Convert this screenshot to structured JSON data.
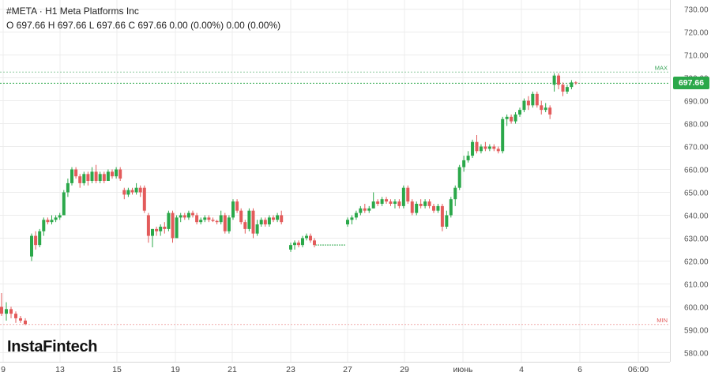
{
  "header": {
    "title": "#META · H1 Meta Platforms Inc",
    "ohlc": "O 697.66 H 697.66 L 697.66 C 697.66 0.00 (0.00%) 0.00 (0.00%)"
  },
  "logo": "InstaFintech",
  "chart_data": {
    "type": "candlestick",
    "symbol": "#META",
    "name": "Meta Platforms Inc",
    "timeframe": "H1",
    "ylim": [
      576,
      734
    ],
    "y_ticks": [
      "730.00",
      "720.00",
      "710.00",
      "700.00",
      "690.00",
      "680.00",
      "670.00",
      "660.00",
      "650.00",
      "640.00",
      "630.00",
      "620.00",
      "610.00",
      "600.00",
      "590.00",
      "580.00"
    ],
    "x_ticks": [
      "9",
      "13",
      "15",
      "19",
      "21",
      "23",
      "27",
      "29",
      "июнь",
      "4",
      "6",
      "06:00"
    ],
    "last_price": 697.66,
    "last_price_label": "697.66",
    "max_value": 702.5,
    "max_label": "MAX",
    "min_value": 592.3,
    "min_label": "MIN",
    "colors": {
      "up": "#2ba84a",
      "down": "#e35b5b",
      "wick": "#555555",
      "grid": "#ececec",
      "level": "#8fc9a0"
    },
    "candles": [
      {
        "o": 600,
        "h": 606,
        "l": 596,
        "c": 597
      },
      {
        "o": 597,
        "h": 602,
        "l": 594,
        "c": 599
      },
      {
        "o": 599,
        "h": 600,
        "l": 595,
        "c": 597
      },
      {
        "o": 597,
        "h": 598,
        "l": 593,
        "c": 595
      },
      {
        "o": 595,
        "h": 596,
        "l": 593,
        "c": 594
      },
      {
        "o": 594,
        "h": 595,
        "l": 592,
        "c": 592.5
      },
      {
        "o": 622,
        "h": 632,
        "l": 620,
        "c": 631
      },
      {
        "o": 631,
        "h": 633,
        "l": 625,
        "c": 627
      },
      {
        "o": 627,
        "h": 634,
        "l": 626,
        "c": 633
      },
      {
        "o": 633,
        "h": 639,
        "l": 631,
        "c": 638
      },
      {
        "o": 638,
        "h": 639,
        "l": 636,
        "c": 637
      },
      {
        "o": 637,
        "h": 640,
        "l": 636,
        "c": 638
      },
      {
        "o": 638,
        "h": 640,
        "l": 637,
        "c": 639
      },
      {
        "o": 639,
        "h": 641,
        "l": 638,
        "c": 640
      },
      {
        "o": 640,
        "h": 651,
        "l": 640,
        "c": 650
      },
      {
        "o": 650,
        "h": 656,
        "l": 648,
        "c": 654
      },
      {
        "o": 654,
        "h": 661,
        "l": 653,
        "c": 660
      },
      {
        "o": 660,
        "h": 661,
        "l": 656,
        "c": 657
      },
      {
        "o": 657,
        "h": 658,
        "l": 652,
        "c": 654
      },
      {
        "o": 654,
        "h": 659,
        "l": 653,
        "c": 658
      },
      {
        "o": 658,
        "h": 659,
        "l": 653,
        "c": 655
      },
      {
        "o": 655,
        "h": 661,
        "l": 654,
        "c": 659
      },
      {
        "o": 659,
        "h": 662,
        "l": 654,
        "c": 655
      },
      {
        "o": 655,
        "h": 659,
        "l": 654,
        "c": 658
      },
      {
        "o": 658,
        "h": 659,
        "l": 654,
        "c": 655
      },
      {
        "o": 655,
        "h": 660,
        "l": 655,
        "c": 659
      },
      {
        "o": 659,
        "h": 660,
        "l": 656,
        "c": 657
      },
      {
        "o": 657,
        "h": 661,
        "l": 656,
        "c": 660
      },
      {
        "o": 660,
        "h": 661,
        "l": 655,
        "c": 656
      },
      {
        "o": 651,
        "h": 652,
        "l": 647,
        "c": 649
      },
      {
        "o": 649,
        "h": 652,
        "l": 648,
        "c": 651
      },
      {
        "o": 651,
        "h": 652,
        "l": 649,
        "c": 650
      },
      {
        "o": 650,
        "h": 654,
        "l": 649,
        "c": 652
      },
      {
        "o": 652,
        "h": 653,
        "l": 648,
        "c": 650
      },
      {
        "o": 652,
        "h": 653,
        "l": 641,
        "c": 642
      },
      {
        "o": 640,
        "h": 641,
        "l": 628,
        "c": 631
      },
      {
        "o": 631,
        "h": 634,
        "l": 626,
        "c": 634
      },
      {
        "o": 634,
        "h": 635,
        "l": 631,
        "c": 633
      },
      {
        "o": 633,
        "h": 636,
        "l": 631,
        "c": 635
      },
      {
        "o": 635,
        "h": 637,
        "l": 632,
        "c": 634
      },
      {
        "o": 634,
        "h": 642,
        "l": 633,
        "c": 641
      },
      {
        "o": 641,
        "h": 642,
        "l": 628,
        "c": 630
      },
      {
        "o": 630,
        "h": 640,
        "l": 630,
        "c": 639
      },
      {
        "o": 639,
        "h": 641,
        "l": 637,
        "c": 640
      },
      {
        "o": 640,
        "h": 641,
        "l": 638,
        "c": 639
      },
      {
        "o": 639,
        "h": 642,
        "l": 638,
        "c": 641
      },
      {
        "o": 641,
        "h": 642,
        "l": 639,
        "c": 640
      },
      {
        "o": 640,
        "h": 641,
        "l": 636,
        "c": 637
      },
      {
        "o": 637,
        "h": 639,
        "l": 636,
        "c": 638
      },
      {
        "o": 638,
        "h": 640,
        "l": 637,
        "c": 639
      },
      {
        "o": 639,
        "h": 640,
        "l": 637,
        "c": 638
      },
      {
        "o": 638,
        "h": 639,
        "l": 637,
        "c": 637.5
      },
      {
        "o": 637.5,
        "h": 638,
        "l": 636,
        "c": 637
      },
      {
        "o": 637,
        "h": 642,
        "l": 636,
        "c": 640
      },
      {
        "o": 640,
        "h": 641,
        "l": 632,
        "c": 633
      },
      {
        "o": 633,
        "h": 640,
        "l": 632,
        "c": 639
      },
      {
        "o": 639,
        "h": 647,
        "l": 638,
        "c": 646
      },
      {
        "o": 646,
        "h": 647,
        "l": 641,
        "c": 642
      },
      {
        "o": 642,
        "h": 643,
        "l": 636,
        "c": 637
      },
      {
        "o": 637,
        "h": 638,
        "l": 632,
        "c": 634
      },
      {
        "o": 634,
        "h": 643,
        "l": 633,
        "c": 642
      },
      {
        "o": 642,
        "h": 643,
        "l": 630,
        "c": 632
      },
      {
        "o": 632,
        "h": 638,
        "l": 631,
        "c": 636
      },
      {
        "o": 636,
        "h": 639,
        "l": 635,
        "c": 638
      },
      {
        "o": 638,
        "h": 639,
        "l": 635,
        "c": 636
      },
      {
        "o": 636,
        "h": 640,
        "l": 635,
        "c": 639
      },
      {
        "o": 639,
        "h": 640,
        "l": 637,
        "c": 638
      },
      {
        "o": 638,
        "h": 641,
        "l": 637,
        "c": 640
      },
      {
        "o": 640,
        "h": 642,
        "l": 636,
        "c": 637
      },
      {
        "o": 625,
        "h": 628,
        "l": 624,
        "c": 627
      },
      {
        "o": 627,
        "h": 629,
        "l": 625,
        "c": 628
      },
      {
        "o": 628,
        "h": 629,
        "l": 626,
        "c": 627
      },
      {
        "o": 627,
        "h": 631,
        "l": 626,
        "c": 630
      },
      {
        "o": 630,
        "h": 632,
        "l": 629,
        "c": 631
      },
      {
        "o": 631,
        "h": 632,
        "l": 628,
        "c": 629
      },
      {
        "o": 629,
        "h": 630,
        "l": 626,
        "c": 627
      },
      {
        "o": 636,
        "h": 639,
        "l": 635,
        "c": 638
      },
      {
        "o": 638,
        "h": 640,
        "l": 636,
        "c": 639
      },
      {
        "o": 639,
        "h": 642,
        "l": 638,
        "c": 641
      },
      {
        "o": 641,
        "h": 644,
        "l": 640,
        "c": 643
      },
      {
        "o": 643,
        "h": 645,
        "l": 641,
        "c": 642
      },
      {
        "o": 642,
        "h": 644,
        "l": 641,
        "c": 643
      },
      {
        "o": 643,
        "h": 650,
        "l": 643,
        "c": 646
      },
      {
        "o": 646,
        "h": 647,
        "l": 644,
        "c": 645
      },
      {
        "o": 645,
        "h": 648,
        "l": 644,
        "c": 647
      },
      {
        "o": 647,
        "h": 648,
        "l": 645,
        "c": 646
      },
      {
        "o": 646,
        "h": 647,
        "l": 644,
        "c": 645
      },
      {
        "o": 645,
        "h": 647,
        "l": 643,
        "c": 646
      },
      {
        "o": 646,
        "h": 647,
        "l": 643,
        "c": 644
      },
      {
        "o": 644,
        "h": 653,
        "l": 643,
        "c": 652
      },
      {
        "o": 652,
        "h": 653,
        "l": 645,
        "c": 646
      },
      {
        "o": 646,
        "h": 647,
        "l": 640,
        "c": 641
      },
      {
        "o": 641,
        "h": 646,
        "l": 640,
        "c": 645
      },
      {
        "o": 645,
        "h": 647,
        "l": 643,
        "c": 644
      },
      {
        "o": 644,
        "h": 647,
        "l": 643,
        "c": 646
      },
      {
        "o": 646,
        "h": 647,
        "l": 643,
        "c": 644
      },
      {
        "o": 644,
        "h": 645,
        "l": 641,
        "c": 642
      },
      {
        "o": 642,
        "h": 645,
        "l": 641,
        "c": 644
      },
      {
        "o": 644,
        "h": 645,
        "l": 633,
        "c": 635
      },
      {
        "o": 635,
        "h": 642,
        "l": 634,
        "c": 640
      },
      {
        "o": 640,
        "h": 648,
        "l": 639,
        "c": 647
      },
      {
        "o": 647,
        "h": 653,
        "l": 644,
        "c": 652
      },
      {
        "o": 652,
        "h": 662,
        "l": 651,
        "c": 661
      },
      {
        "o": 661,
        "h": 666,
        "l": 659,
        "c": 664
      },
      {
        "o": 664,
        "h": 668,
        "l": 663,
        "c": 666
      },
      {
        "o": 666,
        "h": 673,
        "l": 665,
        "c": 672
      },
      {
        "o": 672,
        "h": 675,
        "l": 667,
        "c": 668
      },
      {
        "o": 668,
        "h": 671,
        "l": 667,
        "c": 670
      },
      {
        "o": 670,
        "h": 672,
        "l": 668,
        "c": 669
      },
      {
        "o": 669,
        "h": 671,
        "l": 668,
        "c": 670
      },
      {
        "o": 670,
        "h": 671,
        "l": 668,
        "c": 669
      },
      {
        "o": 669,
        "h": 670,
        "l": 667,
        "c": 668
      },
      {
        "o": 668,
        "h": 683,
        "l": 667,
        "c": 682
      },
      {
        "o": 682,
        "h": 684,
        "l": 679,
        "c": 683
      },
      {
        "o": 683,
        "h": 684,
        "l": 680,
        "c": 681
      },
      {
        "o": 681,
        "h": 685,
        "l": 680,
        "c": 684
      },
      {
        "o": 684,
        "h": 687,
        "l": 683,
        "c": 686
      },
      {
        "o": 686,
        "h": 691,
        "l": 685,
        "c": 690
      },
      {
        "o": 690,
        "h": 692,
        "l": 686,
        "c": 688
      },
      {
        "o": 688,
        "h": 694,
        "l": 687,
        "c": 693
      },
      {
        "o": 693,
        "h": 694,
        "l": 687,
        "c": 688
      },
      {
        "o": 688,
        "h": 690,
        "l": 684,
        "c": 686
      },
      {
        "o": 686,
        "h": 689,
        "l": 685,
        "c": 687
      },
      {
        "o": 687,
        "h": 688,
        "l": 682,
        "c": 684
      },
      {
        "o": 697,
        "h": 702,
        "l": 694,
        "c": 701
      },
      {
        "o": 701,
        "h": 702,
        "l": 695,
        "c": 697
      },
      {
        "o": 697,
        "h": 698,
        "l": 692,
        "c": 694
      },
      {
        "o": 694,
        "h": 697,
        "l": 693,
        "c": 696
      },
      {
        "o": 696,
        "h": 699,
        "l": 695,
        "c": 698
      },
      {
        "o": 698,
        "h": 698.5,
        "l": 697,
        "c": 697.66
      }
    ],
    "candle_x_order": "hourly bars left to right; gaps in the series are drawn as horizontal dashed last-price segments"
  }
}
